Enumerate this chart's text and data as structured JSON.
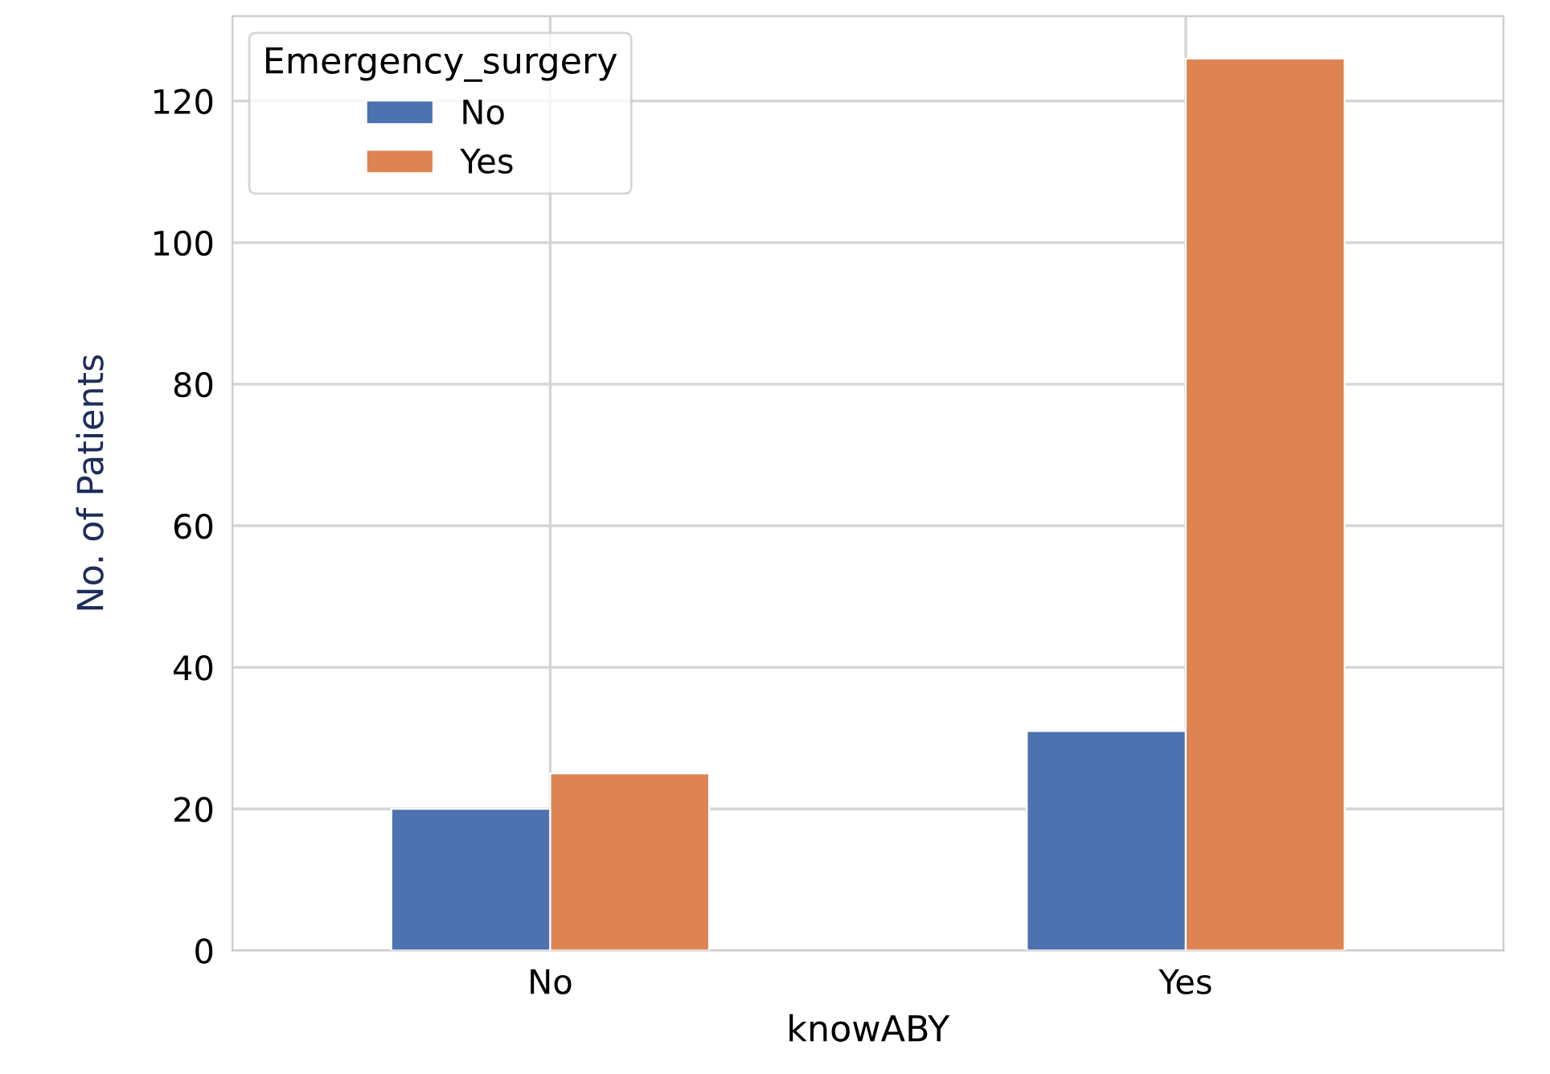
{
  "chart_data": {
    "type": "bar",
    "xlabel": "knowABY",
    "ylabel": "No. of Patients",
    "legend_title": "Emergency_surgery",
    "categories": [
      "No",
      "Yes"
    ],
    "series": [
      {
        "name": "No",
        "color": "#4c72b0",
        "values": [
          20,
          31
        ]
      },
      {
        "name": "Yes",
        "color": "#dd8452",
        "values": [
          25,
          126
        ]
      }
    ],
    "ylim": [
      0,
      132
    ],
    "yticks": [
      0,
      20,
      40,
      60,
      80,
      100,
      120
    ],
    "grid": true,
    "legend": "top left"
  }
}
